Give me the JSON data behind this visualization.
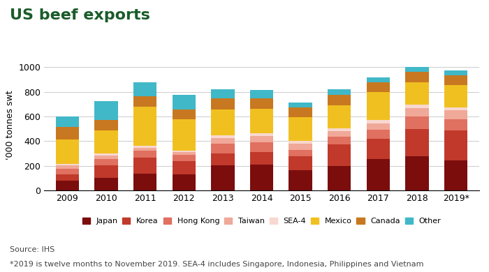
{
  "title": "US beef exports",
  "ylabel": "'000 tonnes swt",
  "years": [
    "2009",
    "2010",
    "2011",
    "2012",
    "2013",
    "2014",
    "2015",
    "2016",
    "2017",
    "2018",
    "2019*"
  ],
  "series": {
    "Japan": [
      80,
      100,
      135,
      130,
      205,
      210,
      165,
      200,
      255,
      275,
      245
    ],
    "Korea": [
      50,
      105,
      130,
      110,
      95,
      100,
      110,
      175,
      165,
      225,
      240
    ],
    "Hong Kong": [
      45,
      50,
      55,
      50,
      80,
      80,
      55,
      60,
      75,
      100,
      95
    ],
    "Taiwan": [
      30,
      30,
      25,
      20,
      45,
      50,
      50,
      45,
      50,
      70,
      70
    ],
    "SEA-4": [
      10,
      15,
      15,
      15,
      20,
      25,
      20,
      25,
      25,
      25,
      25
    ],
    "Mexico": [
      200,
      185,
      320,
      250,
      210,
      200,
      195,
      185,
      230,
      185,
      180
    ],
    "Canada": [
      100,
      85,
      85,
      80,
      90,
      80,
      80,
      85,
      80,
      80,
      80
    ],
    "Other": [
      85,
      155,
      115,
      120,
      75,
      70,
      40,
      45,
      35,
      45,
      40
    ]
  },
  "colors": {
    "Japan": "#7b0d0d",
    "Korea": "#c0392b",
    "Hong Kong": "#e07060",
    "Taiwan": "#f0a898",
    "SEA-4": "#f8d8d0",
    "Mexico": "#f0c020",
    "Canada": "#c87820",
    "Other": "#40b8c8"
  },
  "source_text": "Source: IHS",
  "footnote_text": "*2019 is twelve months to November 2019. SEA-4 includes Singapore, Indonesia, Philippines and Vietnam",
  "ylim": [
    0,
    1060
  ],
  "yticks": [
    0,
    200,
    400,
    600,
    800,
    1000
  ],
  "background_color": "#ffffff",
  "title_color": "#1a5c2a",
  "title_fontsize": 16,
  "axis_fontsize": 9,
  "legend_fontsize": 8,
  "source_fontsize": 8
}
